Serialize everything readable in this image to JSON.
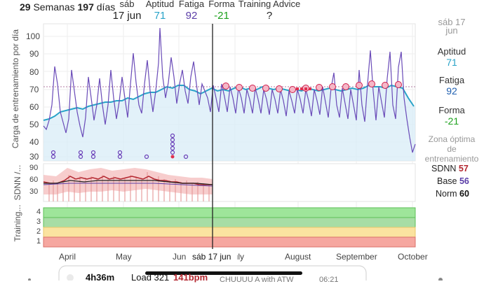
{
  "header": {
    "weeks": "29",
    "weeks_label": "Semanas",
    "days": "197",
    "days_label": "días",
    "date_day": "sáb",
    "date_value": "17 jun",
    "aptitud_label": "Aptitud",
    "aptitud_value": "71",
    "fatiga_label": "Fatiga",
    "fatiga_value": "92",
    "forma_label": "Forma",
    "forma_value": "-21",
    "advice_label": "Training Advice",
    "advice_value": "?"
  },
  "side": {
    "date_partial": "sáb 17",
    "date_partial2": "jun",
    "aptitud_label": "Aptitud",
    "aptitud_value": "71",
    "fatiga_label": "Fatiga",
    "fatiga_value": "92",
    "forma_label": "Forma",
    "forma_value": "-21",
    "zone_line1": "Zona óptima",
    "zone_line2": "de",
    "zone_line3": "entrenamiento",
    "sdnn_label": "SDNN",
    "sdnn_value": "57",
    "base_label": "Base",
    "base_value": "56",
    "norm_label": "Norm",
    "norm_value": "60"
  },
  "load_chart": {
    "ylabel": "Carga de entrenamiento por día",
    "yticks": [
      "100",
      "90",
      "80",
      "70",
      "60",
      "50",
      "40",
      "30"
    ]
  },
  "hrv_chart": {
    "ylabel": "SDNN /...",
    "yticks": [
      "90",
      "60",
      "30"
    ]
  },
  "advice_chart": {
    "ylabel": "Training...",
    "levels": [
      "4",
      "3",
      "2",
      "1"
    ]
  },
  "xaxis": {
    "labels": [
      "April",
      "May",
      "Jun",
      "sáb 17 jun",
      "July",
      "August",
      "September",
      "October"
    ]
  },
  "bottom": {
    "duration": "4h36m",
    "load": "Load 321",
    "bpm": "141bpm",
    "extra": "CHUUUU A with ATW",
    "extra2": "06:21"
  },
  "colors": {
    "aptitud": "#29a3c8",
    "fatiga": "#5b3ea8",
    "forma": "#1da11d",
    "sdnn": "#b3262f",
    "base": "#5b3ea8",
    "norm": "#222222"
  }
}
